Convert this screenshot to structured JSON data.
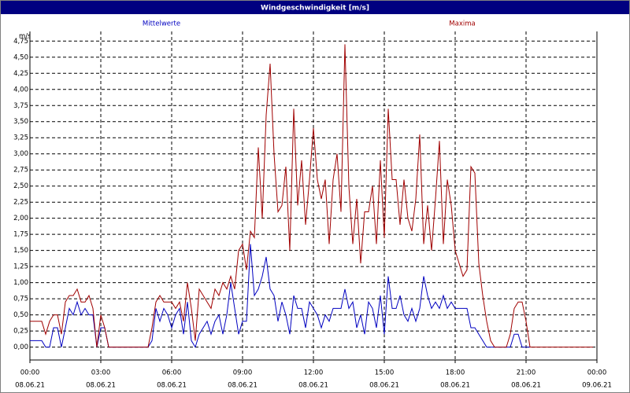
{
  "chart_data": {
    "type": "line",
    "title": "Windgeschwindigkeit [m/s]",
    "ylabel": "m/s",
    "x": [
      0,
      10,
      20,
      30,
      40,
      50,
      60,
      70,
      80,
      90,
      100,
      110,
      120,
      130,
      140,
      150,
      160,
      170,
      180,
      190,
      200,
      210,
      220,
      230,
      240,
      250,
      260,
      270,
      280,
      290,
      300,
      310,
      320,
      330,
      340,
      350,
      360,
      370,
      380,
      390,
      400,
      410,
      420,
      430,
      440,
      450,
      460,
      470,
      480,
      490,
      500,
      510,
      520,
      530,
      540,
      550,
      560,
      570,
      580,
      590,
      600,
      610,
      620,
      630,
      640,
      650,
      660,
      670,
      680,
      690,
      700,
      710,
      720,
      730,
      740,
      750,
      760,
      770,
      780,
      790,
      800,
      810,
      820,
      830,
      840,
      850,
      860,
      870,
      880,
      890,
      900,
      910,
      920,
      930,
      940,
      950,
      960,
      970,
      980,
      990,
      1000,
      1010,
      1020,
      1030,
      1040,
      1050,
      1060,
      1070,
      1080,
      1090,
      1100,
      1110,
      1120,
      1130,
      1140,
      1150,
      1160,
      1170,
      1180,
      1190,
      1200,
      1210,
      1220,
      1230,
      1240,
      1250,
      1260,
      1270,
      1280,
      1290,
      1300,
      1310,
      1320,
      1330,
      1340,
      1350,
      1360,
      1370,
      1380,
      1390,
      1400,
      1410,
      1420,
      1430
    ],
    "series": [
      {
        "name": "Mittelwerte",
        "color": "#0000c0",
        "values": [
          0.1,
          0.1,
          0.1,
          0.1,
          0,
          0,
          0.3,
          0.3,
          0,
          0.3,
          0.6,
          0.5,
          0.7,
          0.5,
          0.6,
          0.5,
          0.5,
          0,
          0.3,
          0.3,
          0,
          0,
          0,
          0,
          0,
          0,
          0,
          0,
          0,
          0,
          0,
          0.1,
          0.6,
          0.4,
          0.6,
          0.5,
          0.3,
          0.5,
          0.6,
          0.2,
          0.7,
          0.1,
          0,
          0.2,
          0.3,
          0.4,
          0.2,
          0.4,
          0.5,
          0.2,
          0.5,
          1.0,
          0.6,
          0.2,
          0.4,
          0.4,
          1.6,
          0.8,
          0.9,
          1.1,
          1.4,
          0.9,
          0.8,
          0.4,
          0.7,
          0.5,
          0.2,
          0.8,
          0.6,
          0.6,
          0.3,
          0.7,
          0.6,
          0.5,
          0.3,
          0.5,
          0.4,
          0.6,
          0.6,
          0.6,
          0.9,
          0.6,
          0.7,
          0.3,
          0.5,
          0.2,
          0.7,
          0.6,
          0.3,
          0.8,
          0.2,
          1.1,
          0.6,
          0.6,
          0.8,
          0.5,
          0.4,
          0.6,
          0.4,
          0.6,
          1.1,
          0.8,
          0.6,
          0.7,
          0.6,
          0.8,
          0.6,
          0.7,
          0.6,
          0.6,
          0.6,
          0.6,
          0.3,
          0.3,
          0.2,
          0.1,
          0,
          0,
          0,
          0,
          0,
          0,
          0,
          0.2,
          0.2,
          0,
          0,
          0,
          null,
          null,
          null,
          null,
          null,
          null,
          null,
          null,
          null,
          null,
          null,
          null,
          null,
          null,
          null,
          null
        ]
      },
      {
        "name": "Maxima",
        "color": "#a00000",
        "values": [
          0.4,
          0.4,
          0.4,
          0.4,
          0.2,
          0.4,
          0.5,
          0.5,
          0.2,
          0.7,
          0.8,
          0.8,
          0.9,
          0.7,
          0.7,
          0.8,
          0.6,
          0,
          0.5,
          0.3,
          0,
          0,
          0,
          0,
          0,
          0,
          0,
          0,
          0,
          0,
          0,
          0.3,
          0.7,
          0.8,
          0.7,
          0.7,
          0.7,
          0.6,
          0.7,
          0.4,
          1.0,
          0.6,
          0.1,
          0.9,
          0.8,
          0.7,
          0.6,
          0.9,
          0.8,
          1.0,
          0.9,
          1.1,
          0.9,
          1.5,
          1.6,
          1.2,
          1.8,
          1.7,
          3.1,
          2.0,
          3.6,
          4.4,
          3.0,
          2.1,
          2.2,
          2.8,
          1.5,
          3.7,
          2.2,
          2.9,
          1.9,
          2.6,
          3.4,
          2.6,
          2.3,
          2.6,
          1.6,
          2.6,
          3.0,
          2.1,
          4.7,
          2.5,
          1.6,
          2.3,
          1.3,
          2.1,
          2.1,
          2.5,
          1.6,
          2.9,
          1.7,
          3.7,
          2.6,
          2.6,
          1.9,
          2.6,
          2.0,
          1.8,
          2.3,
          3.3,
          1.6,
          2.2,
          1.5,
          2.3,
          3.2,
          1.6,
          2.6,
          2.2,
          1.5,
          1.3,
          1.1,
          1.2,
          2.8,
          2.7,
          1.3,
          0.8,
          0.4,
          0.1,
          0,
          0,
          0,
          0,
          0.2,
          0.6,
          0.7,
          0.7,
          0.4,
          0,
          0,
          0,
          0,
          0,
          0,
          0,
          0,
          0,
          0,
          0,
          0,
          0,
          0,
          0,
          0,
          0
        ]
      }
    ],
    "xlim": [
      0,
      1440
    ],
    "xticks": [
      {
        "value": 0,
        "label": "00:00"
      },
      {
        "value": 180,
        "label": "03:00"
      },
      {
        "value": 360,
        "label": "06:00"
      },
      {
        "value": 540,
        "label": "09:00"
      },
      {
        "value": 720,
        "label": "12:00"
      },
      {
        "value": 900,
        "label": "15:00"
      },
      {
        "value": 1080,
        "label": "18:00"
      },
      {
        "value": 1260,
        "label": "21:00"
      },
      {
        "value": 1440,
        "label": "00:00"
      }
    ],
    "xtick_dates": [
      "08.06.21",
      "08.06.21",
      "08.06.21",
      "08.06.21",
      "08.06.21",
      "08.06.21",
      "08.06.21",
      "08.06.21",
      "09.06.21"
    ],
    "ylim": [
      -0.2,
      4.9
    ],
    "yticks": [
      {
        "value": 0,
        "label": "0,00"
      },
      {
        "value": 0.25,
        "label": "0,25"
      },
      {
        "value": 0.5,
        "label": "0,50"
      },
      {
        "value": 0.75,
        "label": "0,75"
      },
      {
        "value": 1,
        "label": "1,00"
      },
      {
        "value": 1.25,
        "label": "1,25"
      },
      {
        "value": 1.5,
        "label": "1,50"
      },
      {
        "value": 1.75,
        "label": "1,75"
      },
      {
        "value": 2,
        "label": "2,00"
      },
      {
        "value": 2.25,
        "label": "2,25"
      },
      {
        "value": 2.5,
        "label": "2,50"
      },
      {
        "value": 2.75,
        "label": "2,75"
      },
      {
        "value": 3,
        "label": "3,00"
      },
      {
        "value": 3.25,
        "label": "3,25"
      },
      {
        "value": 3.5,
        "label": "3,50"
      },
      {
        "value": 3.75,
        "label": "3,75"
      },
      {
        "value": 4,
        "label": "4,00"
      },
      {
        "value": 4.25,
        "label": "4,25"
      },
      {
        "value": 4.5,
        "label": "4,50"
      },
      {
        "value": 4.75,
        "label": "4,75"
      }
    ],
    "grid": true
  }
}
